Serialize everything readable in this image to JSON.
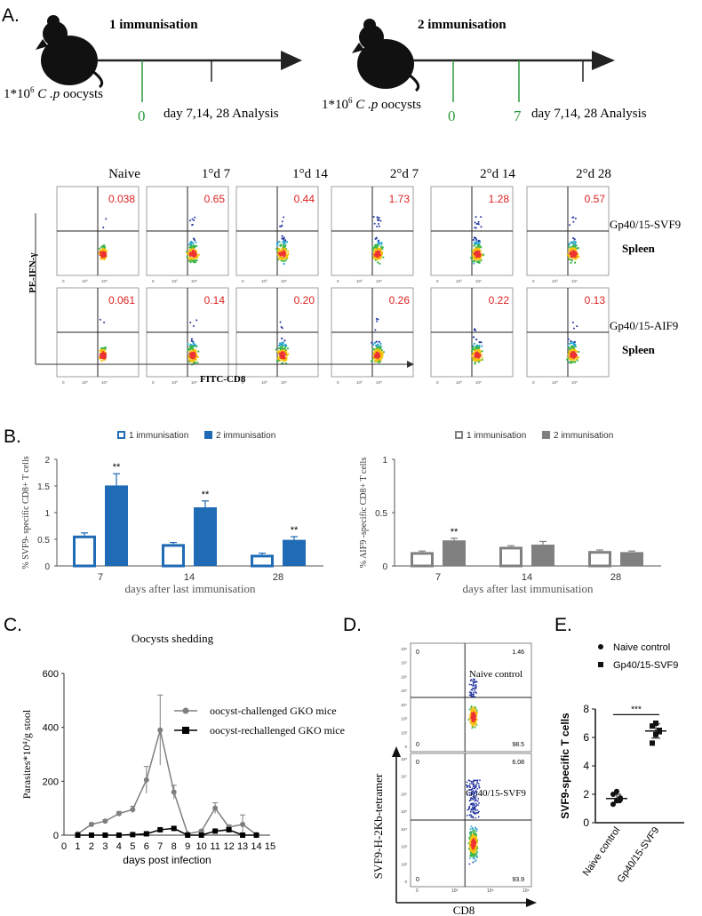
{
  "panels": {
    "A": {
      "label": "A.",
      "scheme1": {
        "title": "1 immunisation",
        "dose_prefix": "1*10",
        "dose_exp": "6",
        "dose_italic": "C .p",
        "dose_suffix": " oocysts",
        "marks": [
          "0"
        ],
        "analysis": "day 7,14, 28 Analysis"
      },
      "scheme2": {
        "title": "2 immunisation",
        "dose_prefix": "1*10",
        "dose_exp": "6",
        "dose_italic": "C .p",
        "dose_suffix": " oocysts",
        "marks": [
          "0",
          "7"
        ],
        "analysis": "day 7,14, 28 Analysis"
      },
      "flow": {
        "columns": [
          "Naive",
          "1°d 7",
          "1°d 14",
          "2°d 7",
          "2°d 14",
          "2°d 28"
        ],
        "rows": [
          {
            "label": "Gp40/15-SVF9",
            "tissue": "Spleen",
            "values": [
              "0.038",
              "0.65",
              "0.44",
              "1.73",
              "1.28",
              "0.57"
            ]
          },
          {
            "label": "Gp40/15-AIF9",
            "tissue": "Spleen",
            "values": [
              "0.061",
              "0.14",
              "0.20",
              "0.26",
              "0.22",
              "0.13"
            ]
          }
        ],
        "y_axis": "PE-IFN-γ",
        "x_axis": "FITC-CD8",
        "tick_labels": [
          "0",
          "10⁰",
          "10⁵"
        ]
      }
    },
    "B": {
      "label": "B."
    },
    "C": {
      "label": "C.",
      "title": "Oocysts shedding"
    },
    "D": {
      "label": "D.",
      "plots": [
        {
          "title": "Naive control",
          "q2": "1.46",
          "q4": "98.5",
          "q1": "0",
          "q3": "0"
        },
        {
          "title": "Gp40/15-SVF9",
          "q2": "6.08",
          "q4": "93.9",
          "q1": "0",
          "q3": "0"
        }
      ],
      "y_axis": "SVF9-H-2Kb-tetramer",
      "x_axis": "CD8",
      "y_ticks": [
        "10⁸",
        "10⁷",
        "10⁶",
        "10⁵",
        "10⁴",
        "10³",
        "10²",
        "0"
      ],
      "x_ticks": [
        "0",
        "10³",
        "10⁵",
        "10⁸"
      ]
    },
    "E": {
      "label": "E."
    }
  },
  "chart_data": [
    {
      "id": "B-left",
      "type": "bar",
      "categories": [
        "7",
        "14",
        "28"
      ],
      "series": [
        {
          "name": "1 immunisation",
          "values": [
            0.57,
            0.41,
            0.21
          ],
          "errors": [
            0.05,
            0.03,
            0.03
          ],
          "color": "#1f6bb5",
          "fill": "none"
        },
        {
          "name": "2 immunisation",
          "values": [
            1.51,
            1.1,
            0.49
          ],
          "errors": [
            0.22,
            0.12,
            0.06
          ],
          "color": "#1f6bb5",
          "fill": "solid"
        }
      ],
      "significance": [
        "**",
        "**",
        "**"
      ],
      "ylabel": "% SVF9- specific CD8+ T cells",
      "xlabel": "days after last immunisation",
      "ylim": [
        0,
        2
      ],
      "yticks": [
        "0",
        "0.5",
        "1",
        "1.5",
        "2"
      ]
    },
    {
      "id": "B-right",
      "type": "bar",
      "categories": [
        "7",
        "14",
        "28"
      ],
      "series": [
        {
          "name": "1 immunisation",
          "values": [
            0.13,
            0.18,
            0.14
          ],
          "errors": [
            0.01,
            0.01,
            0.01
          ],
          "color": "#808080",
          "fill": "none"
        },
        {
          "name": "2 immunisation",
          "values": [
            0.24,
            0.2,
            0.13
          ],
          "errors": [
            0.02,
            0.03,
            0.01
          ],
          "color": "#808080",
          "fill": "solid"
        }
      ],
      "significance": [
        "**",
        "",
        ""
      ],
      "ylabel": "% AIF9 -specific CD8+ T cells",
      "xlabel": "days after last immunisation",
      "ylim": [
        0,
        1
      ],
      "yticks": [
        "0",
        "0.5",
        "1"
      ]
    },
    {
      "id": "C",
      "type": "line",
      "title": "Oocysts shedding",
      "x": [
        0,
        1,
        2,
        3,
        4,
        5,
        6,
        7,
        8,
        9,
        10,
        11,
        12,
        13,
        14,
        15
      ],
      "series": [
        {
          "name": "oocyst-challenged GKO mice",
          "marker": "circle",
          "color": "#7f7f7f",
          "values": [
            null,
            5,
            40,
            52,
            80,
            95,
            205,
            390,
            160,
            5,
            15,
            100,
            30,
            40,
            2,
            null
          ],
          "errors": [
            0,
            0,
            5,
            5,
            8,
            12,
            50,
            130,
            25,
            2,
            5,
            20,
            8,
            35,
            1,
            0
          ]
        },
        {
          "name": "oocyst-rechallenged GKO mice",
          "marker": "square",
          "color": "#000000",
          "values": [
            null,
            0,
            0,
            0,
            0,
            2,
            5,
            20,
            25,
            0,
            0,
            15,
            20,
            0,
            0,
            null
          ],
          "errors": [
            0,
            0,
            0,
            0,
            0,
            1,
            2,
            3,
            3,
            0,
            0,
            2,
            3,
            0,
            0,
            0
          ]
        }
      ],
      "ylabel": "Parasites*10⁴/g stool",
      "xlabel": "days post infection",
      "xlim": [
        0,
        15
      ],
      "ylim": [
        0,
        600
      ],
      "yticks": [
        "0",
        "200",
        "400",
        "600"
      ]
    },
    {
      "id": "E",
      "type": "scatter",
      "categories": [
        "Naive control",
        "Gp40/15-SVF9"
      ],
      "series": [
        {
          "name": "Naive control",
          "marker": "circle",
          "values": [
            1.3,
            1.55,
            1.75,
            2.0,
            2.2,
            1.6
          ],
          "mean": 1.7,
          "sd": 0.3
        },
        {
          "name": "Gp40/15-SVF9",
          "marker": "square",
          "values": [
            5.6,
            6.2,
            6.5,
            6.8,
            7.0,
            6.4
          ],
          "mean": 6.45,
          "sd": 0.5
        }
      ],
      "significance": "***",
      "ylabel": "SVF9-specific T cells",
      "ylim": [
        0,
        8
      ],
      "yticks": [
        "0",
        "2",
        "4",
        "6",
        "8"
      ]
    }
  ]
}
